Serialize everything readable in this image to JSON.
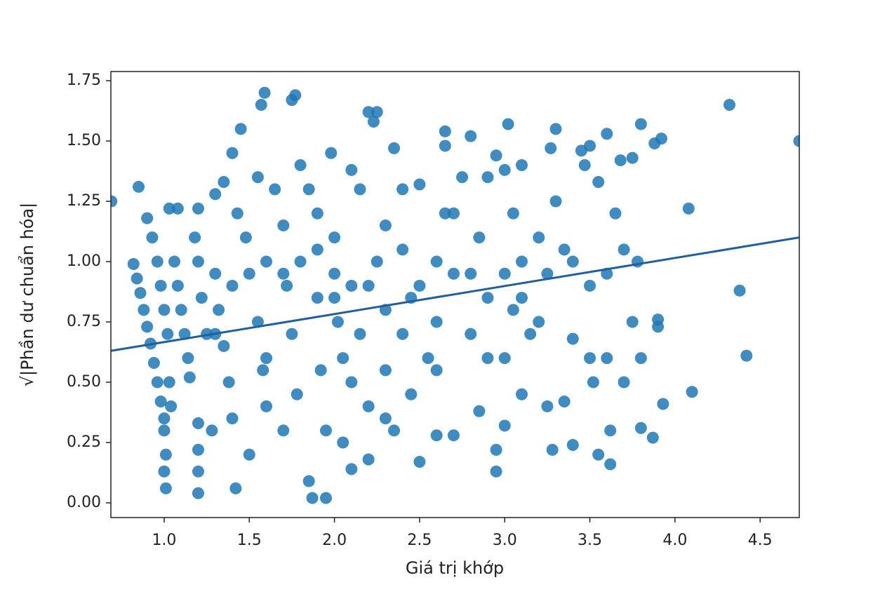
{
  "chart_data": {
    "type": "scatter",
    "xlabel": "Giá trị khớp",
    "ylabel": "√|Phần dư chuẩn hóa|",
    "xlim": [
      0.687,
      4.73
    ],
    "ylim": [
      -0.061,
      1.788
    ],
    "xticks": [
      {
        "value": 1,
        "label": "1.0"
      },
      1.5,
      {
        "value": 2,
        "label": "2.0"
      },
      2.5,
      {
        "value": 3,
        "label": "3.0"
      },
      3.5,
      {
        "value": 4,
        "label": "4.0"
      },
      4.5
    ],
    "yticks": [
      {
        "value": 0,
        "label": "0.00"
      },
      0.25,
      {
        "value": 0.5,
        "label": "0.50"
      },
      0.75,
      {
        "value": 1,
        "label": "1.00"
      },
      1.25,
      {
        "value": 1.5,
        "label": "1.50"
      },
      1.75
    ],
    "series": [
      {
        "type": "scatter",
        "color": "#1f77b4",
        "x": [
          0.82,
          0.84,
          0.86,
          0.88,
          0.9,
          0.92,
          0.94,
          0.96,
          0.98,
          1.0,
          1.0,
          1.01,
          1.0,
          1.01,
          0.85,
          0.69,
          0.9,
          0.93,
          0.96,
          0.98,
          1.0,
          1.02,
          1.03,
          1.04,
          1.03,
          1.08,
          1.06,
          1.08,
          1.1,
          1.12,
          1.14,
          1.15,
          1.2,
          1.18,
          1.2,
          1.22,
          1.25,
          1.2,
          1.2,
          1.2,
          1.2,
          1.28,
          1.3,
          1.3,
          1.32,
          1.35,
          1.38,
          1.4,
          1.42,
          1.35,
          1.4,
          1.45,
          1.43,
          1.48,
          1.5,
          1.5,
          1.55,
          1.57,
          1.59,
          1.55,
          1.58,
          1.6,
          1.65,
          1.7,
          1.72,
          1.75,
          1.77,
          1.75,
          1.78,
          1.8,
          1.85,
          1.87,
          1.95,
          1.85,
          1.9,
          1.9,
          1.92,
          1.95,
          1.98,
          2.0,
          2.0,
          2.02,
          2.05,
          2.05,
          2.1,
          2.1,
          2.1,
          2.15,
          2.15,
          2.2,
          2.2,
          2.2,
          2.25,
          2.23,
          2.25,
          2.3,
          2.3,
          2.35,
          2.35,
          2.4,
          2.4,
          2.45,
          2.45,
          2.5,
          2.5,
          2.55,
          2.6,
          2.6,
          2.65,
          2.65,
          2.65,
          2.7,
          2.7,
          2.75,
          2.8,
          2.8,
          2.85,
          2.85,
          2.9,
          2.9,
          2.95,
          2.95,
          2.95,
          3.0,
          3.0,
          3.0,
          3.02,
          3.05,
          3.05,
          3.1,
          3.1,
          3.1,
          3.15,
          3.2,
          3.25,
          3.25,
          3.27,
          3.28,
          3.3,
          3.3,
          3.35,
          3.35,
          3.4,
          3.4,
          3.45,
          3.47,
          3.5,
          3.5,
          3.5,
          3.52,
          3.55,
          3.55,
          3.6,
          3.6,
          3.62,
          3.62,
          3.65,
          3.68,
          3.7,
          3.7,
          3.75,
          3.75,
          3.78,
          3.8,
          3.8,
          3.8,
          3.87,
          3.88,
          3.9,
          3.9,
          3.92,
          3.93,
          4.08,
          4.1,
          4.32,
          4.38,
          4.42,
          4.73,
          3.0,
          2.0,
          2.2,
          1.7,
          1.6,
          2.4,
          2.6,
          2.8,
          1.8,
          1.9,
          2.3,
          2.5,
          2.7,
          1.4,
          1.3,
          3.1,
          3.2,
          3.4,
          3.6,
          2.1,
          2.3,
          1.6,
          1.7,
          2.6,
          2.9
        ],
        "values": [
          0.99,
          0.93,
          0.87,
          0.8,
          0.73,
          0.66,
          0.58,
          0.5,
          0.42,
          0.35,
          0.3,
          0.2,
          0.13,
          0.06,
          1.31,
          1.25,
          1.18,
          1.1,
          1.0,
          0.9,
          0.8,
          0.7,
          0.5,
          0.4,
          1.22,
          1.22,
          1.0,
          0.9,
          0.8,
          0.7,
          0.6,
          0.52,
          1.22,
          1.1,
          1.0,
          0.85,
          0.7,
          0.33,
          0.22,
          0.13,
          0.04,
          0.3,
          1.28,
          0.95,
          0.8,
          0.65,
          0.5,
          0.35,
          0.06,
          1.33,
          1.45,
          1.55,
          1.2,
          1.1,
          0.95,
          0.2,
          1.35,
          1.65,
          1.7,
          0.75,
          0.55,
          0.4,
          1.3,
          1.15,
          0.9,
          1.67,
          1.69,
          0.7,
          0.45,
          1.4,
          0.09,
          0.02,
          0.02,
          1.3,
          1.2,
          0.85,
          0.55,
          0.3,
          1.45,
          1.1,
          0.95,
          0.75,
          0.6,
          0.25,
          1.38,
          0.9,
          0.14,
          1.3,
          0.7,
          0.4,
          0.18,
          1.62,
          1.62,
          1.58,
          1.0,
          0.8,
          0.55,
          1.47,
          0.3,
          1.3,
          1.05,
          0.85,
          0.45,
          1.32,
          0.17,
          0.6,
          1.0,
          0.28,
          1.54,
          1.48,
          1.2,
          0.95,
          0.28,
          1.35,
          1.52,
          0.7,
          1.1,
          0.38,
          1.35,
          0.85,
          1.44,
          0.22,
          0.13,
          1.38,
          0.6,
          0.32,
          1.57,
          1.2,
          0.8,
          1.4,
          1.0,
          0.45,
          0.7,
          1.1,
          0.95,
          0.4,
          1.47,
          0.22,
          1.55,
          1.25,
          1.05,
          0.42,
          0.68,
          0.24,
          1.46,
          1.4,
          1.48,
          0.9,
          0.6,
          0.5,
          1.33,
          0.2,
          1.53,
          0.6,
          0.3,
          0.16,
          1.2,
          1.42,
          1.05,
          0.5,
          1.43,
          0.75,
          1.0,
          1.57,
          0.6,
          0.31,
          0.27,
          1.49,
          0.76,
          0.73,
          1.51,
          0.41,
          1.22,
          0.46,
          1.65,
          0.88,
          0.61,
          1.5,
          0.95,
          0.85,
          0.9,
          0.95,
          1.0,
          0.7,
          0.75,
          0.95,
          1.0,
          1.05,
          1.15,
          0.9,
          1.2,
          0.9,
          0.7,
          0.85,
          0.75,
          1.0,
          0.95,
          0.5,
          0.35,
          0.6,
          0.3,
          0.55,
          0.6
        ]
      },
      {
        "type": "line",
        "color": "#1f5f9e",
        "x": [
          0.687,
          4.73
        ],
        "values": [
          0.63,
          1.1
        ]
      }
    ]
  }
}
